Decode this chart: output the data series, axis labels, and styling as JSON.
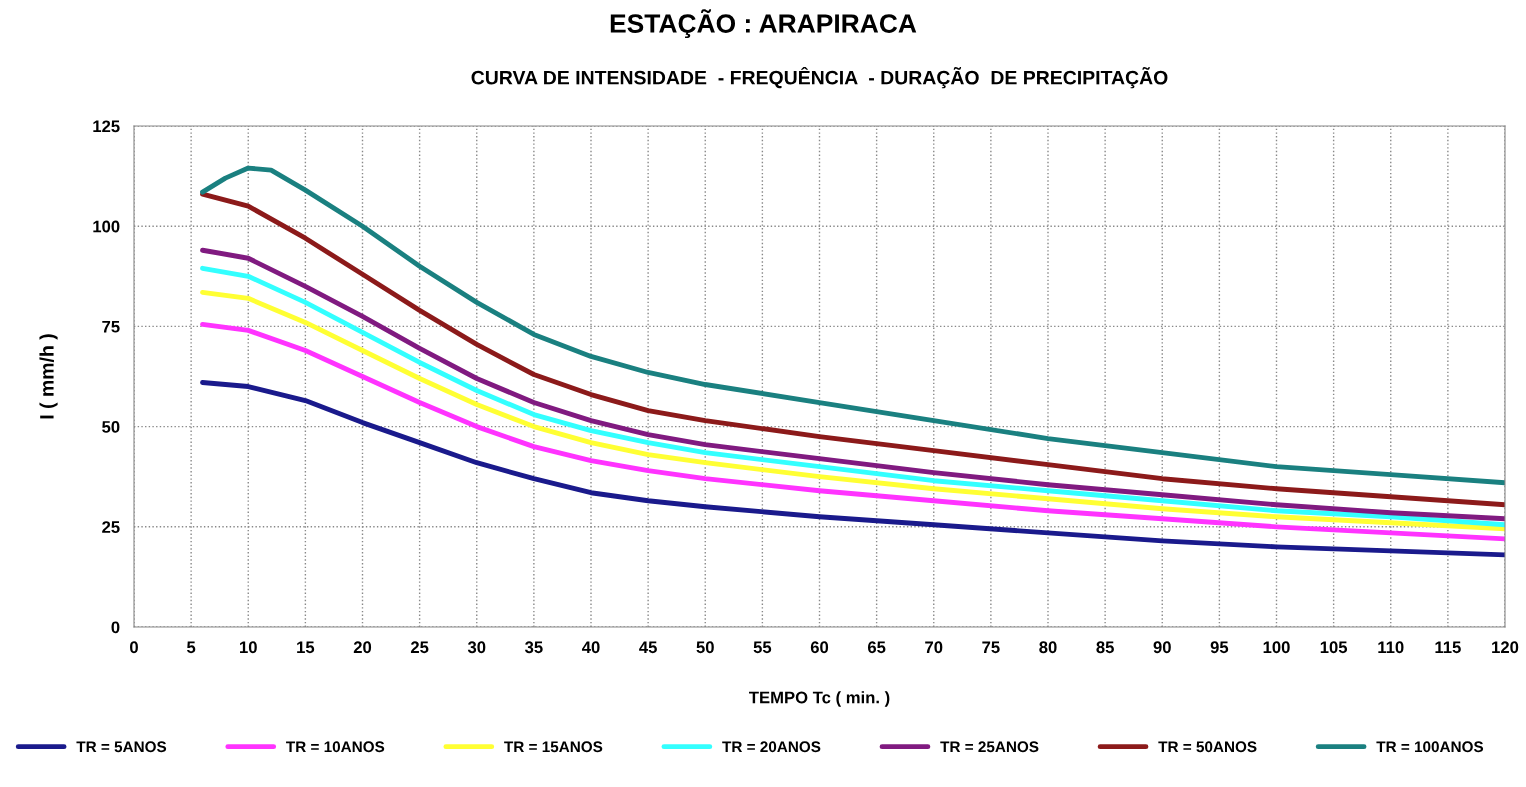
{
  "chart_data": {
    "type": "line",
    "title": "ESTAÇÃO : ARAPIRACA",
    "subtitle": "CURVA DE INTENSIDADE  - FREQUÊNCIA  - DURAÇÃO  DE PRECIPITAÇÃO",
    "xlabel": "TEMPO Tc ( min. )",
    "ylabel": "I ( mm/h )",
    "x": [
      6,
      10,
      15,
      20,
      25,
      30,
      35,
      40,
      45,
      50,
      60,
      70,
      80,
      90,
      100,
      110,
      120
    ],
    "series": [
      {
        "name": "TR = 5ANOS",
        "color": "#1a1a8c",
        "values": [
          61,
          60,
          56.5,
          51,
          46,
          41,
          37,
          33.5,
          31.5,
          30,
          27.5,
          25.5,
          23.5,
          21.5,
          20,
          19,
          18
        ]
      },
      {
        "name": "TR = 10ANOS",
        "color": "#ff33ff",
        "values": [
          75.5,
          74,
          69,
          62.5,
          56,
          50,
          45,
          41.5,
          39,
          37,
          34,
          31.5,
          29,
          27,
          25,
          23.5,
          22
        ]
      },
      {
        "name": "TR = 15ANOS",
        "color": "#ffff33",
        "values": [
          83.5,
          82,
          76,
          69,
          62,
          55.5,
          50,
          46,
          43,
          41,
          37.5,
          34.5,
          32,
          29.5,
          27.5,
          26,
          24.5
        ]
      },
      {
        "name": "TR = 20ANOS",
        "color": "#33ffff",
        "values": [
          89.5,
          87.5,
          81,
          73.5,
          66,
          59,
          53,
          49,
          46,
          43.5,
          40,
          36.5,
          34,
          31.5,
          29,
          27.5,
          25.5
        ]
      },
      {
        "name": "TR = 25ANOS",
        "color": "#801a80",
        "values": [
          94,
          92,
          85,
          77.5,
          69.5,
          62,
          56,
          51.5,
          48,
          45.5,
          42,
          38.5,
          35.5,
          33,
          30.5,
          28.5,
          27
        ]
      },
      {
        "name": "TR = 50ANOS",
        "color": "#8c1a1a",
        "values": [
          108,
          105,
          97,
          88,
          79,
          70.5,
          63,
          58,
          54,
          51.5,
          47.5,
          44,
          40.5,
          37,
          34.5,
          32.5,
          30.5
        ]
      },
      {
        "name": "TR = 100ANOS",
        "color": "#1a8080",
        "x": [
          6,
          8,
          10,
          12,
          15,
          20,
          25,
          30,
          35,
          40,
          45,
          50,
          60,
          70,
          80,
          90,
          100,
          110,
          120
        ],
        "values": [
          108.5,
          112,
          114.5,
          114,
          109,
          100,
          90,
          81,
          73,
          67.5,
          63.5,
          60.5,
          56,
          51.5,
          47,
          43.5,
          40,
          38,
          36
        ]
      }
    ],
    "xlim": [
      0,
      120
    ],
    "xticks": [
      0,
      5,
      10,
      15,
      20,
      25,
      30,
      35,
      40,
      45,
      50,
      55,
      60,
      65,
      70,
      75,
      80,
      85,
      90,
      95,
      100,
      105,
      110,
      115,
      120
    ],
    "ylim": [
      0,
      125
    ],
    "yticks": [
      0,
      25,
      50,
      75,
      100,
      125
    ],
    "grid": true,
    "legend": "bottom",
    "line_style": "solid"
  }
}
